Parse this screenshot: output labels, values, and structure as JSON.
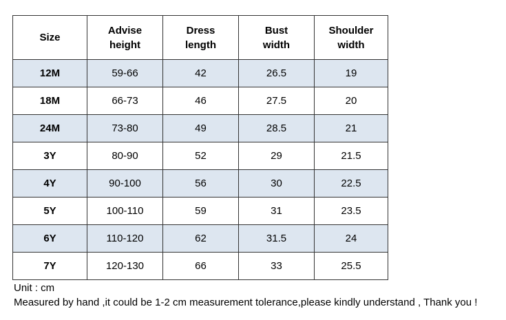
{
  "table": {
    "header": [
      "Size",
      "Advise height",
      "Dress length",
      "Bust width",
      "Shoulder width"
    ],
    "rows": [
      [
        "12M",
        "59-66",
        "42",
        "26.5",
        "19"
      ],
      [
        "18M",
        "66-73",
        "46",
        "27.5",
        "20"
      ],
      [
        "24M",
        "73-80",
        "49",
        "28.5",
        "21"
      ],
      [
        "3Y",
        "80-90",
        "52",
        "29",
        "21.5"
      ],
      [
        "4Y",
        "90-100",
        "56",
        "30",
        "22.5"
      ],
      [
        "5Y",
        "100-110",
        "59",
        "31",
        "23.5"
      ],
      [
        "6Y",
        "110-120",
        "62",
        "31.5",
        "24"
      ],
      [
        "7Y",
        "120-130",
        "66",
        "33",
        "25.5"
      ]
    ]
  },
  "notes": [
    "Unit : cm",
    "Measured by hand ,it could be 1-2 cm measurement tolerance,please kindly understand , Thank you !"
  ]
}
